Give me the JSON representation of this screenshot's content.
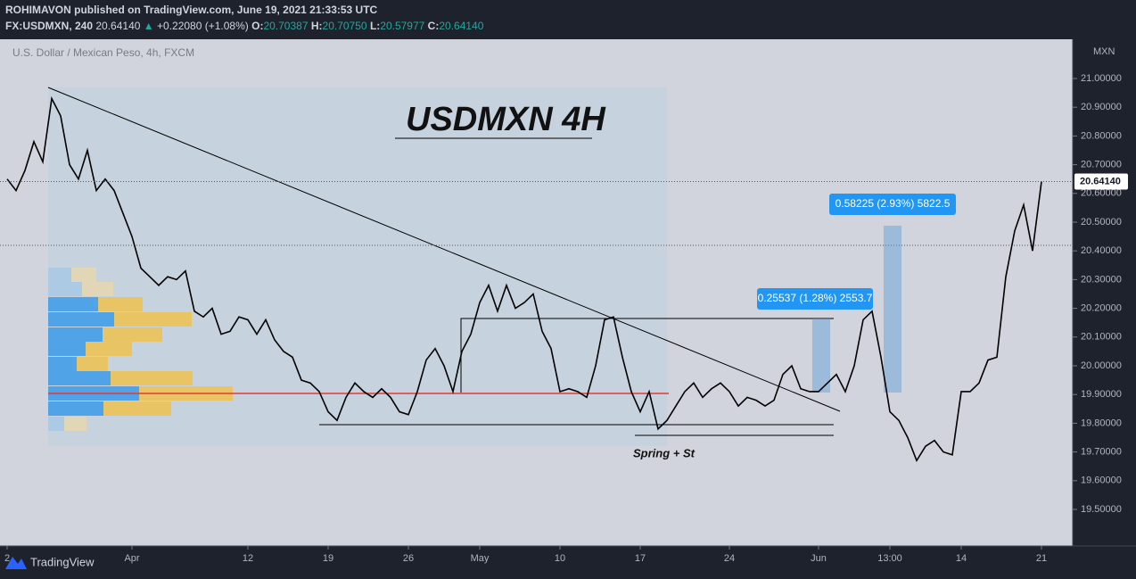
{
  "header": {
    "publisher": "ROHIMAVON published on TradingView.com, June 19, 2021 21:33:53 UTC",
    "symbol_line": [
      "FX:USDMXN, 240",
      "20.64140",
      "▲",
      "+0.22080 (+1.08%)",
      "O:",
      "20.70387",
      "H:",
      "20.70750",
      "L:",
      "20.57977",
      "C:",
      "20.64140"
    ]
  },
  "chart_data": {
    "type": "line",
    "title": "U.S. Dollar / Mexican Peso, 4h, FXCM",
    "y_axis_label": "MXN",
    "color": "#000000",
    "annotations": [
      "USDMXN 4H",
      "Spring + St",
      "0.25537 (1.28%) 2553.7",
      "0.58225 (2.93%) 5822.5"
    ],
    "last_price": {
      "value": 20.6414,
      "label": "20.64140"
    },
    "categories": [
      "2",
      null,
      null,
      null,
      null,
      null,
      null,
      null,
      null,
      null,
      null,
      null,
      null,
      null,
      "Apr",
      null,
      null,
      null,
      null,
      null,
      null,
      null,
      null,
      null,
      null,
      null,
      null,
      "12",
      null,
      null,
      null,
      null,
      null,
      null,
      null,
      null,
      "19",
      null,
      null,
      null,
      null,
      null,
      null,
      null,
      null,
      "26",
      null,
      null,
      null,
      null,
      null,
      null,
      null,
      "May",
      null,
      null,
      null,
      null,
      null,
      null,
      null,
      null,
      "10",
      null,
      null,
      null,
      null,
      null,
      null,
      null,
      null,
      "17",
      null,
      null,
      null,
      null,
      null,
      null,
      null,
      null,
      null,
      "24",
      null,
      null,
      null,
      null,
      null,
      null,
      null,
      null,
      null,
      "Jun",
      null,
      null,
      null,
      null,
      null,
      null,
      null,
      "13:00",
      null,
      null,
      null,
      null,
      null,
      null,
      null,
      "14",
      null,
      null,
      null,
      null,
      null,
      null,
      null,
      null,
      "21",
      null,
      null,
      null
    ],
    "values": [
      20.65,
      20.61,
      20.68,
      20.78,
      20.71,
      20.93,
      20.87,
      20.7,
      20.65,
      20.75,
      20.61,
      20.65,
      20.61,
      20.53,
      20.45,
      20.34,
      20.31,
      20.28,
      20.31,
      20.3,
      20.33,
      20.19,
      20.17,
      20.2,
      20.11,
      20.12,
      20.17,
      20.16,
      20.11,
      20.16,
      20.09,
      20.05,
      20.03,
      19.95,
      19.94,
      19.91,
      19.84,
      19.81,
      19.89,
      19.94,
      19.91,
      19.89,
      19.92,
      19.89,
      19.84,
      19.83,
      19.91,
      20.02,
      20.06,
      20.0,
      19.91,
      20.05,
      20.11,
      20.22,
      20.28,
      20.19,
      20.28,
      20.2,
      20.22,
      20.25,
      20.12,
      20.06,
      19.91,
      19.92,
      19.91,
      19.89,
      20.0,
      20.16,
      20.17,
      20.03,
      19.91,
      19.84,
      19.91,
      19.78,
      19.81,
      19.86,
      19.91,
      19.94,
      19.89,
      19.92,
      19.94,
      19.91,
      19.86,
      19.89,
      19.88,
      19.86,
      19.88,
      19.97,
      20.0,
      19.92,
      19.91,
      19.91,
      19.94,
      19.97,
      19.91,
      20.0,
      20.16,
      20.19,
      20.03,
      19.84,
      19.81,
      19.75,
      19.67,
      19.72,
      19.74,
      19.7,
      19.69,
      19.91,
      19.91,
      19.94,
      20.02,
      20.03,
      20.31,
      20.47,
      20.56,
      20.4,
      20.6414,
      null,
      null,
      null
    ],
    "ylim": [
      19.3727,
      21.1366
    ],
    "yticks": [
      {
        "value": 19.5,
        "label": "19.50000"
      },
      {
        "value": 19.6,
        "label": "19.60000"
      },
      {
        "value": 19.7,
        "label": "19.70000"
      },
      {
        "value": 19.8,
        "label": "19.80000"
      },
      {
        "value": 19.9,
        "label": "19.90000"
      },
      {
        "value": 20.0,
        "label": "20.00000"
      },
      {
        "value": 20.1,
        "label": "20.10000"
      },
      {
        "value": 20.2,
        "label": "20.20000"
      },
      {
        "value": 20.3,
        "label": "20.30000"
      },
      {
        "value": 20.4,
        "label": "20.40000"
      },
      {
        "value": 20.5,
        "label": "20.50000"
      },
      {
        "value": 20.6,
        "label": "20.60000"
      },
      {
        "value": 20.7,
        "label": "20.70000"
      },
      {
        "value": 20.8,
        "label": "20.80000"
      },
      {
        "value": 20.9,
        "label": "20.90000"
      },
      {
        "value": 21.0,
        "label": "21.00000"
      }
    ],
    "grid": false
  },
  "footer": {
    "brand": "TradingView"
  }
}
